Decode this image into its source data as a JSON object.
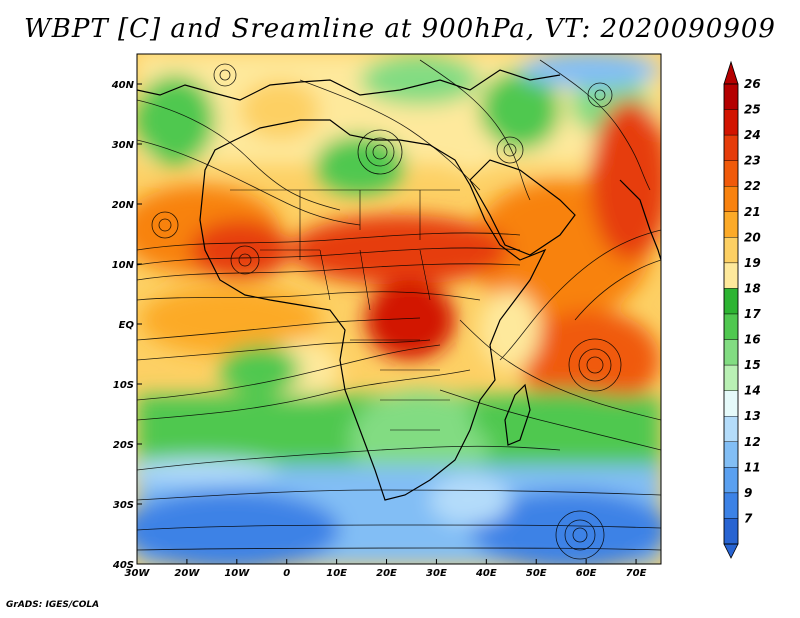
{
  "title": "WBPT [C] and Sreamline at 900hPa, VT: 2020090909",
  "credit": "GrADS: IGES/COLA",
  "map": {
    "lon_range": [
      -30,
      75
    ],
    "lat_range": [
      -40,
      45
    ],
    "lon_ticks": [
      {
        "value": -30,
        "label": "30W"
      },
      {
        "value": -20,
        "label": "20W"
      },
      {
        "value": -10,
        "label": "10W"
      },
      {
        "value": 0,
        "label": "0"
      },
      {
        "value": 10,
        "label": "10E"
      },
      {
        "value": 20,
        "label": "20E"
      },
      {
        "value": 30,
        "label": "30E"
      },
      {
        "value": 40,
        "label": "40E"
      },
      {
        "value": 50,
        "label": "50E"
      },
      {
        "value": 60,
        "label": "60E"
      },
      {
        "value": 70,
        "label": "70E"
      }
    ],
    "lat_ticks": [
      {
        "value": 40,
        "label": "40N"
      },
      {
        "value": 30,
        "label": "30N"
      },
      {
        "value": 20,
        "label": "20N"
      },
      {
        "value": 10,
        "label": "10N"
      },
      {
        "value": 0,
        "label": "EQ"
      },
      {
        "value": -10,
        "label": "10S"
      },
      {
        "value": -20,
        "label": "20S"
      },
      {
        "value": -30,
        "label": "30S"
      },
      {
        "value": -40,
        "label": "40S"
      }
    ]
  },
  "colorbar": {
    "levels": [
      "26",
      "25",
      "24",
      "23",
      "22",
      "21",
      "20",
      "19",
      "18",
      "17",
      "16",
      "15",
      "14",
      "13",
      "12",
      "11",
      "9",
      "7"
    ],
    "colors": [
      "#b40000",
      "#d21400",
      "#e63c0a",
      "#f05a0a",
      "#f8820f",
      "#fcaa28",
      "#fdd064",
      "#fee99c",
      "#2db432",
      "#50c850",
      "#82dc82",
      "#b9f0b4",
      "#e6fafa",
      "#b4dcfa",
      "#82bef5",
      "#5aa0f0",
      "#3c82e6",
      "#2864d2"
    ]
  }
}
